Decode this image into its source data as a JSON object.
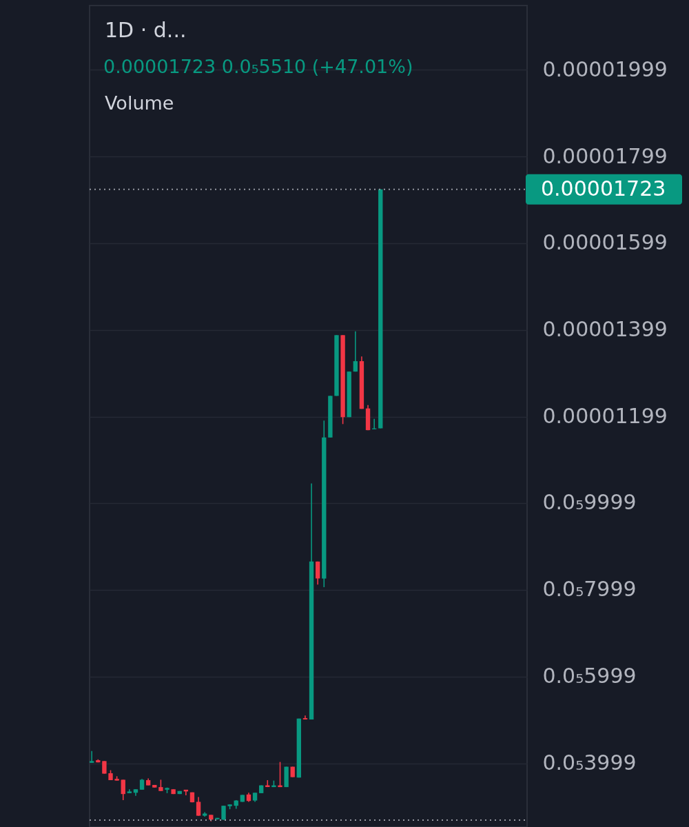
{
  "chart_data": {
    "type": "candlestick",
    "title": "1D · d...",
    "annotations": [
      "0.00001723 0.0₅5510 (+47.01%)",
      "Volume"
    ],
    "categories": [
      null,
      null,
      null,
      null,
      null,
      null,
      null,
      null,
      null,
      null,
      null,
      null,
      null,
      null,
      null,
      null,
      null,
      null,
      null,
      null,
      null,
      null,
      null,
      null,
      null,
      null,
      null,
      null,
      null,
      null,
      null,
      null,
      null,
      null,
      null,
      null,
      null,
      null,
      null,
      null,
      null,
      null,
      null,
      null,
      null,
      null,
      null,
      null,
      null,
      null,
      null,
      null,
      null,
      null,
      null,
      null,
      null,
      null,
      null,
      null,
      null,
      null,
      null,
      null,
      null,
      null,
      null,
      null,
      null,
      null
    ],
    "ohlc": [
      [
        4.01e-06,
        4.28e-06,
        4.01e-06,
        4.05e-06
      ],
      [
        4.07e-06,
        4.09e-06,
        4.02e-06,
        4.02e-06
      ],
      [
        4.05e-06,
        4.05e-06,
        3.76e-06,
        3.76e-06
      ],
      [
        3.77e-06,
        3.84e-06,
        3.61e-06,
        3.61e-06
      ],
      [
        3.64e-06,
        3.7e-06,
        3.6e-06,
        3.6e-06
      ],
      [
        3.62e-06,
        3.62e-06,
        3.15e-06,
        3.29e-06
      ],
      [
        3.31e-06,
        3.4e-06,
        3.31e-06,
        3.35e-06
      ],
      [
        3.32e-06,
        3.4e-06,
        3.25e-06,
        3.4e-06
      ],
      [
        3.39e-06,
        3.64e-06,
        3.39e-06,
        3.62e-06
      ],
      [
        3.61e-06,
        3.65e-06,
        3.49e-06,
        3.49e-06
      ],
      [
        3.5e-06,
        3.5e-06,
        3.44e-06,
        3.44e-06
      ],
      [
        3.45e-06,
        3.62e-06,
        3.36e-06,
        3.36e-06
      ],
      [
        3.39e-06,
        3.44e-06,
        3.31e-06,
        3.43e-06
      ],
      [
        3.4e-06,
        3.4e-06,
        3.29e-06,
        3.29e-06
      ],
      [
        3.29e-06,
        3.36e-06,
        3.29e-06,
        3.36e-06
      ],
      [
        3.39e-06,
        3.39e-06,
        3.26e-06,
        3.35e-06
      ],
      [
        3.33e-06,
        3.33e-06,
        3.1e-06,
        3.1e-06
      ],
      [
        3.11e-06,
        3.22e-06,
        2.79e-06,
        2.79e-06
      ],
      [
        2.79e-06,
        2.87e-06,
        2.77e-06,
        2.84e-06
      ],
      [
        2.81e-06,
        2.81e-06,
        2.66e-06,
        2.7e-06
      ],
      [
        2.71e-06,
        2.74e-06,
        2.7e-06,
        2.74e-06
      ],
      [
        2.7e-06,
        3.02e-06,
        2.69e-06,
        3.02e-06
      ],
      [
        3.01e-06,
        3.05e-06,
        2.94e-06,
        3.05e-06
      ],
      [
        3.02e-06,
        3.15e-06,
        2.95e-06,
        3.14e-06
      ],
      [
        3.11e-06,
        3.27e-06,
        3.11e-06,
        3.27e-06
      ],
      [
        3.28e-06,
        3.32e-06,
        3.11e-06,
        3.13e-06
      ],
      [
        3.14e-06,
        3.32e-06,
        3.11e-06,
        3.32e-06
      ],
      [
        3.31e-06,
        3.49e-06,
        3.31e-06,
        3.49e-06
      ],
      [
        3.49e-06,
        3.61e-06,
        3.45e-06,
        3.45e-06
      ],
      [
        3.45e-06,
        3.6e-06,
        3.45e-06,
        3.49e-06
      ],
      [
        3.49e-06,
        4.03e-06,
        3.45e-06,
        3.45e-06
      ],
      [
        3.45e-06,
        3.92e-06,
        3.45e-06,
        3.92e-06
      ],
      [
        3.92e-06,
        3.92e-06,
        3.68e-06,
        3.68e-06
      ],
      [
        3.67e-06,
        5.03e-06,
        3.67e-06,
        5.03e-06
      ],
      [
        5.04e-06,
        5.1e-06,
        5.01e-06,
        5.01e-06
      ],
      [
        5.01e-06,
        1.045e-05,
        5.01e-06,
        8.65e-06
      ],
      [
        8.65e-06,
        8.65e-06,
        8.12e-06,
        8.26e-06
      ],
      [
        8.26e-06,
        1.19e-05,
        8.06e-06,
        1.151e-05
      ],
      [
        1.151e-05,
        1.247e-05,
        1.151e-05,
        1.247e-05
      ],
      [
        1.247e-05,
        1.387e-05,
        1.247e-05,
        1.387e-05
      ],
      [
        1.387e-05,
        1.387e-05,
        1.182e-05,
        1.198e-05
      ],
      [
        1.198e-05,
        1.303e-05,
        1.198e-05,
        1.303e-05
      ],
      [
        1.303e-05,
        1.396e-05,
        1.303e-05,
        1.327e-05
      ],
      [
        1.327e-05,
        1.338e-05,
        1.217e-05,
        1.217e-05
      ],
      [
        1.218e-05,
        1.226e-05,
        1.168e-05,
        1.168e-05
      ],
      [
        1.17e-05,
        1.194e-05,
        1.17e-05,
        1.172e-05
      ],
      [
        1.172e-05,
        1.723e-05,
        1.172e-05,
        1.723e-05
      ],
      null,
      null,
      null,
      null,
      null,
      null,
      null,
      null,
      null,
      null,
      null,
      null,
      null,
      null,
      null,
      null,
      null,
      null,
      null,
      null,
      null,
      null,
      null
    ],
    "colors": [
      "#089981",
      "#f23645",
      "#f23645",
      "#f23645",
      "#f23645",
      "#f23645",
      "#089981",
      "#089981",
      "#089981",
      "#f23645",
      "#f23645",
      "#f23645",
      "#089981",
      "#f23645",
      "#089981",
      "#f23645",
      "#f23645",
      "#f23645",
      "#089981",
      "#f23645",
      "#089981",
      "#089981",
      "#089981",
      "#089981",
      "#089981",
      "#f23645",
      "#089981",
      "#089981",
      "#f23645",
      "#089981",
      "#f23645",
      "#089981",
      "#f23645",
      "#089981",
      "#f23645",
      "#089981",
      "#f23645",
      "#089981",
      "#089981",
      "#089981",
      "#f23645",
      "#089981",
      "#089981",
      "#f23645",
      "#f23645",
      "#089981",
      "#089981",
      null,
      null,
      null,
      null,
      null,
      null,
      null,
      null,
      null,
      null,
      null,
      null,
      null,
      null,
      null,
      null,
      null,
      null,
      null,
      null,
      null,
      null,
      null
    ],
    "ylim": [
      2.53e-06,
      2.147e-05
    ],
    "yticks": [
      {
        "value": 1.999e-05,
        "label": "0.00001999"
      },
      {
        "value": 1.799e-05,
        "label": "0.00001799"
      },
      {
        "value": 1.599e-05,
        "label": "0.00001599"
      },
      {
        "value": 1.399e-05,
        "label": "0.00001399"
      },
      {
        "value": 1.199e-05,
        "label": "0.00001199"
      },
      {
        "value": 9.999e-06,
        "label": "0.0₅9999"
      },
      {
        "value": 7.999e-06,
        "label": "0.0₅7999"
      },
      {
        "value": 5.999e-06,
        "label": "0.0₅5999"
      },
      {
        "value": 3.999e-06,
        "label": "0.0₅3999"
      }
    ],
    "ref_lines": [
      {
        "axis": "y",
        "value": 1.723e-05,
        "label": "0.00001723",
        "color": "#9598a1",
        "line_style": "dotted"
      },
      {
        "axis": "y",
        "value": 2.69e-06,
        "color": "#9598a1",
        "line_style": "dotted"
      }
    ],
    "grid": "y",
    "tick_labels": "y"
  }
}
